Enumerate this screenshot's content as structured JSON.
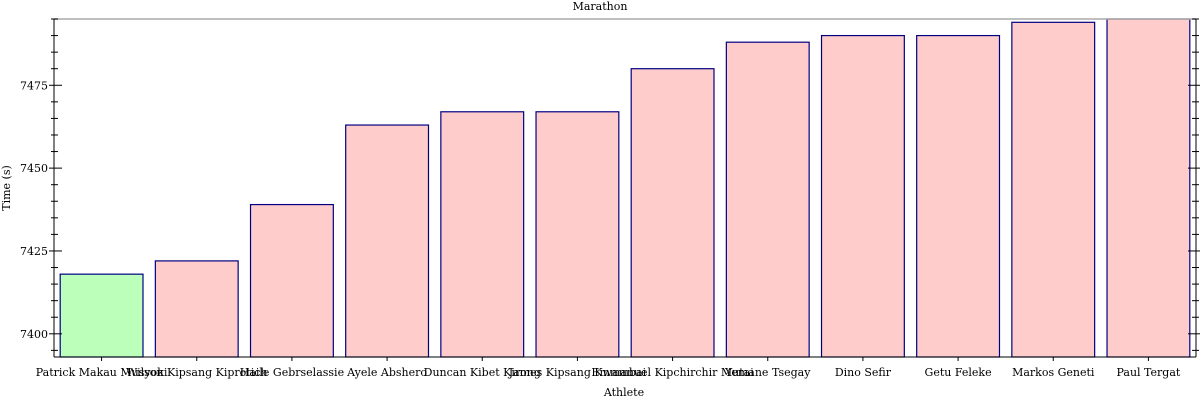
{
  "chart_data": {
    "type": "bar",
    "title": "Marathon",
    "xlabel": "Athlete",
    "ylabel": "Time (s)",
    "categories": [
      "Patrick Makau Musyoki",
      "Wilson Kipsang Kiprotich",
      "Haile Gebrselassie",
      "Ayele Abshero",
      "Duncan Kibet Kirong",
      "James Kipsang Kwambai",
      "Emmanuel Kipchirchir Mutai",
      "Yemane Tsegay",
      "Dino Sefir",
      "Getu Feleke",
      "Markos Geneti",
      "Paul Tergat"
    ],
    "values": [
      7418,
      7422,
      7439,
      7463,
      7467,
      7467,
      7480,
      7488,
      7490,
      7490,
      7494,
      7495
    ],
    "highlight_index": 0,
    "ylim": [
      7393,
      7495
    ],
    "yticks": [
      7400,
      7425,
      7450,
      7475
    ],
    "grid": false,
    "colors": {
      "highlight_fill": "#bbffbb",
      "bar_fill": "#ffcccc",
      "bar_stroke": "#000080",
      "axis": "#000000",
      "top_line": "#aaaaaa"
    }
  }
}
